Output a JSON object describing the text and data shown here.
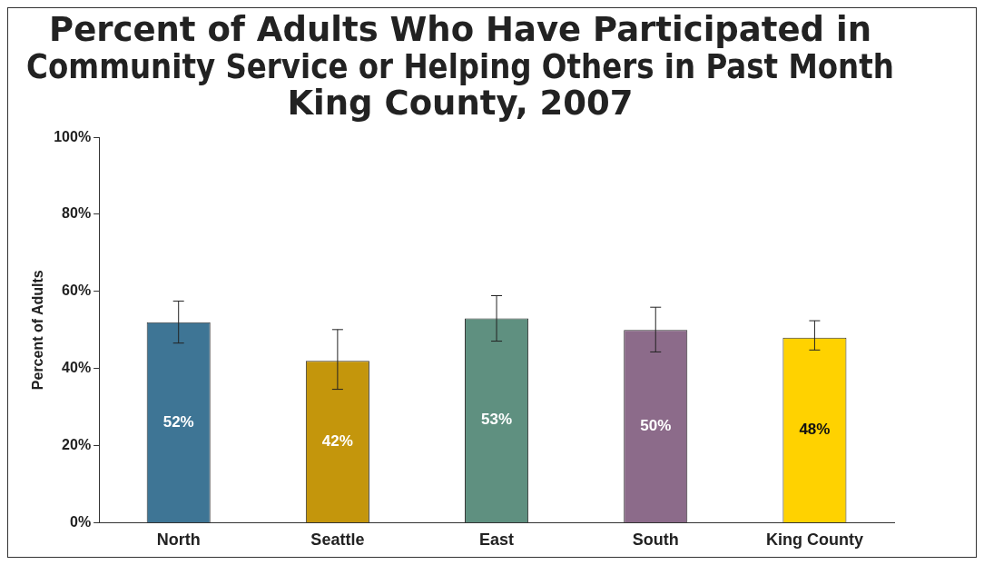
{
  "chart_data": {
    "type": "bar",
    "title": "Percent of Adults Who Have Participated in\nCommunity Service or Helping Others in Past Month\nKing County, 2007",
    "ylabel": "Percent of Adults",
    "categories": [
      "North",
      "Seattle",
      "East",
      "South",
      "King County"
    ],
    "values": [
      52,
      42,
      53,
      50,
      48
    ],
    "colors": [
      "#3e7595",
      "#c4960c",
      "#5f9080",
      "#8c6b8a",
      "#ffd200"
    ],
    "errors": [
      [
        46.6,
        57.5
      ],
      [
        34.6,
        50.1
      ],
      [
        47.1,
        58.9
      ],
      [
        44.3,
        55.9
      ],
      [
        44.8,
        52.4
      ]
    ],
    "value_labels": [
      "52%",
      "42%",
      "53%",
      "50%",
      "48%"
    ],
    "ylim": [
      0,
      100
    ],
    "yticks": [
      {
        "value": 0,
        "label": "0%"
      },
      {
        "value": 20,
        "label": "20%"
      },
      {
        "value": 40,
        "label": "40%"
      },
      {
        "value": 60,
        "label": "60%"
      },
      {
        "value": 80,
        "label": "80%"
      },
      {
        "value": 100,
        "label": "100%"
      }
    ],
    "grid": false,
    "legend": false
  }
}
